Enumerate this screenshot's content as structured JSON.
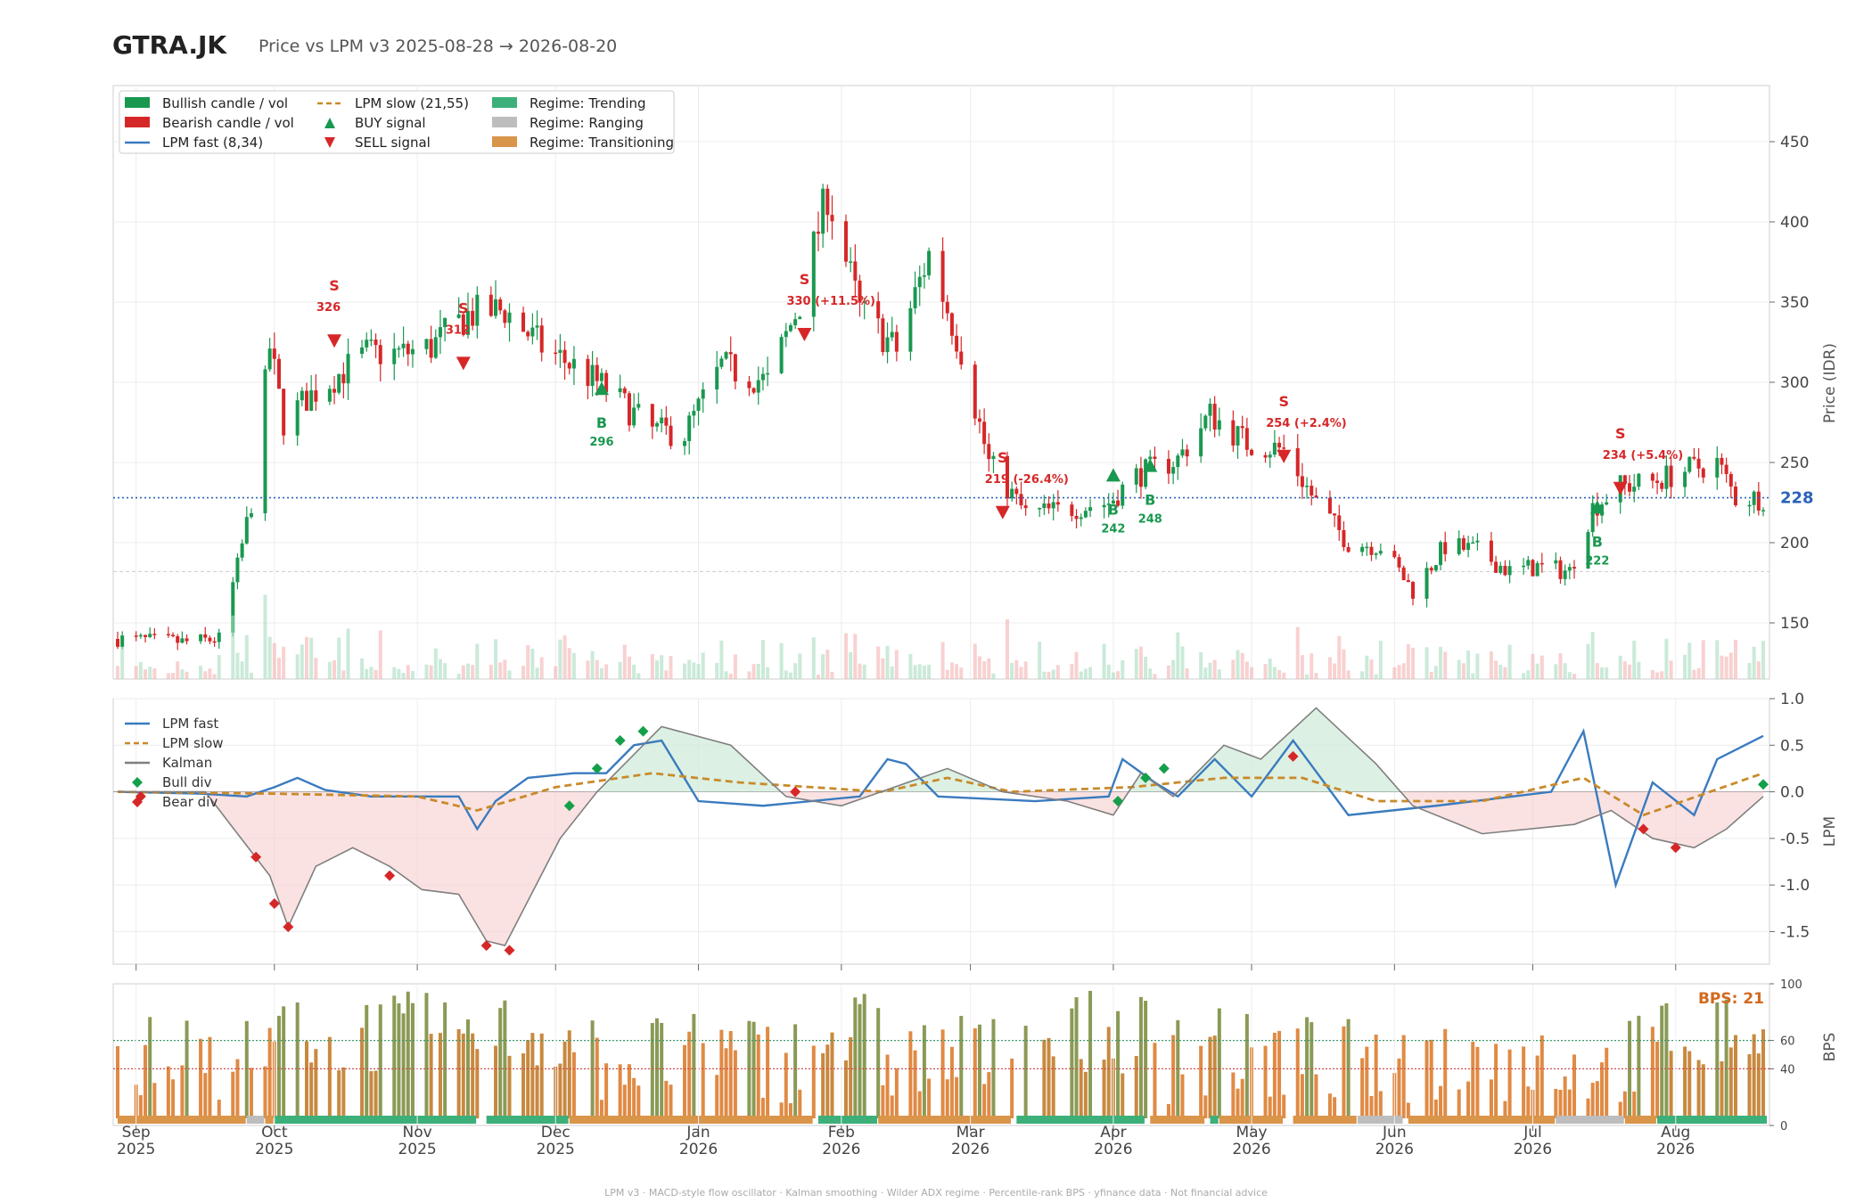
{
  "header": {
    "ticker": "GTRA.JK",
    "subtitle": "Price vs LPM v3  2025-08-28 → 2026-08-20"
  },
  "footer": {
    "text": "LPM v3  ·  MACD-style flow oscillator  ·  Kalman smoothing  ·  Wilder ADX regime  ·  Percentile-rank BPS  ·  yfinance data  ·  Not financial advice"
  },
  "colors": {
    "bull": "#1a9850",
    "bear": "#d62728",
    "lpm_fast": "#3a7bbf",
    "lpm_slow": "#c98a2b",
    "kalman": "#7f7f7f",
    "trending": "#3db07a",
    "ranging": "#bdbdbd",
    "transitioning": "#d9954a",
    "last_price": "#2a63b8",
    "bps_label": "#d2691e"
  },
  "chart_data": [
    {
      "id": "price",
      "type": "candlestick",
      "ylabel": "Price (IDR)",
      "ylim": [
        115,
        485
      ],
      "yticks": [
        150,
        200,
        250,
        300,
        350,
        400,
        450
      ],
      "x_range": [
        "2025-08-28",
        "2026-08-20"
      ],
      "last_price": 228,
      "last_price_label": "228",
      "legend": {
        "placement": "top-left",
        "entries": [
          "Bullish candle / vol",
          "Bearish candle / vol",
          "LPM fast (8,34)",
          "LPM slow (21,55)",
          "BUY signal",
          "SELL signal",
          "Regime: Trending",
          "Regime: Ranging",
          "Regime: Transitioning"
        ]
      },
      "anchors": [
        [
          "2025-08-28",
          140
        ],
        [
          "2025-09-12",
          138
        ],
        [
          "2025-09-19",
          140
        ],
        [
          "2025-09-23",
          185
        ],
        [
          "2025-09-26",
          225
        ],
        [
          "2025-09-30",
          322
        ],
        [
          "2025-10-03",
          275
        ],
        [
          "2025-10-08",
          290
        ],
        [
          "2025-10-14",
          303
        ],
        [
          "2025-10-21",
          318
        ],
        [
          "2025-10-29",
          318
        ],
        [
          "2025-11-04",
          322
        ],
        [
          "2025-11-12",
          342
        ],
        [
          "2025-11-20",
          345
        ],
        [
          "2025-11-28",
          322
        ],
        [
          "2025-12-05",
          310
        ],
        [
          "2025-12-12",
          296
        ],
        [
          "2025-12-22",
          270
        ],
        [
          "2025-12-29",
          268
        ],
        [
          "2026-01-06",
          310
        ],
        [
          "2026-01-16",
          300
        ],
        [
          "2026-01-23",
          350
        ],
        [
          "2026-01-29",
          418
        ],
        [
          "2026-02-05",
          345
        ],
        [
          "2026-02-13",
          320
        ],
        [
          "2026-02-20",
          380
        ],
        [
          "2026-02-27",
          320
        ],
        [
          "2026-03-05",
          250
        ],
        [
          "2026-03-13",
          218
        ],
        [
          "2026-03-20",
          220
        ],
        [
          "2026-03-31",
          225
        ],
        [
          "2026-04-06",
          242
        ],
        [
          "2026-04-15",
          252
        ],
        [
          "2026-04-22",
          280
        ],
        [
          "2026-04-30",
          262
        ],
        [
          "2026-05-08",
          258
        ],
        [
          "2026-05-15",
          225
        ],
        [
          "2026-05-22",
          200
        ],
        [
          "2026-05-29",
          198
        ],
        [
          "2026-06-05",
          170
        ],
        [
          "2026-06-12",
          198
        ],
        [
          "2026-06-19",
          195
        ],
        [
          "2026-06-26",
          182
        ],
        [
          "2026-07-02",
          185
        ],
        [
          "2026-07-09",
          182
        ],
        [
          "2026-07-14",
          222
        ],
        [
          "2026-07-20",
          235
        ],
        [
          "2026-07-27",
          238
        ],
        [
          "2026-08-03",
          245
        ],
        [
          "2026-08-10",
          250
        ],
        [
          "2026-08-14",
          228
        ],
        [
          "2026-08-20",
          228
        ]
      ],
      "signals": [
        {
          "type": "SELL",
          "date": "2025-10-14",
          "price": 326,
          "letter": "S",
          "label": "326"
        },
        {
          "type": "SELL",
          "date": "2025-11-11",
          "price": 312,
          "letter": "S",
          "label": "312"
        },
        {
          "type": "BUY",
          "date": "2025-12-11",
          "price": 296,
          "letter": "B",
          "label": "296"
        },
        {
          "type": "SELL",
          "date": "2026-01-24",
          "price": 330,
          "letter": "S",
          "label": "330 (+11.5%)"
        },
        {
          "type": "SELL",
          "date": "2026-03-08",
          "price": 219,
          "letter": "S",
          "label": "219 (-26.4%)"
        },
        {
          "type": "BUY",
          "date": "2026-04-01",
          "price": 242,
          "letter": "B",
          "label": "242"
        },
        {
          "type": "BUY",
          "date": "2026-04-09",
          "price": 248,
          "letter": "B",
          "label": "248"
        },
        {
          "type": "SELL",
          "date": "2026-05-08",
          "price": 254,
          "letter": "S",
          "label": "254 (+2.4%)"
        },
        {
          "type": "BUY",
          "date": "2026-07-15",
          "price": 222,
          "letter": "B",
          "label": "222"
        },
        {
          "type": "SELL",
          "date": "2026-07-20",
          "price": 234,
          "letter": "S",
          "label": "234 (+5.4%)"
        }
      ]
    },
    {
      "id": "lpm",
      "type": "line",
      "ylabel": "LPM",
      "ylim": [
        -1.85,
        1.0
      ],
      "yticks": [
        "-1.5",
        "-1.0",
        "-0.5",
        "0.0",
        "0.5",
        "1.0"
      ],
      "legend": {
        "placement": "top-left",
        "entries": [
          "LPM fast",
          "LPM slow",
          "Kalman",
          "Bull div",
          "Bear div"
        ]
      },
      "series": [
        {
          "name": "LPM fast",
          "points": [
            [
              "2025-08-28",
              0.0
            ],
            [
              "2025-09-15",
              -0.02
            ],
            [
              "2025-09-25",
              -0.05
            ],
            [
              "2025-10-01",
              0.05
            ],
            [
              "2025-10-06",
              0.15
            ],
            [
              "2025-10-12",
              0.02
            ],
            [
              "2025-10-22",
              -0.05
            ],
            [
              "2025-11-10",
              -0.05
            ],
            [
              "2025-11-14",
              -0.4
            ],
            [
              "2025-11-18",
              -0.1
            ],
            [
              "2025-11-25",
              0.15
            ],
            [
              "2025-12-05",
              0.2
            ],
            [
              "2025-12-12",
              0.2
            ],
            [
              "2025-12-18",
              0.5
            ],
            [
              "2025-12-24",
              0.55
            ],
            [
              "2026-01-01",
              -0.1
            ],
            [
              "2026-01-15",
              -0.15
            ],
            [
              "2026-02-05",
              -0.05
            ],
            [
              "2026-02-11",
              0.35
            ],
            [
              "2026-02-15",
              0.3
            ],
            [
              "2026-02-22",
              -0.05
            ],
            [
              "2026-03-15",
              -0.1
            ],
            [
              "2026-03-31",
              -0.05
            ],
            [
              "2026-04-03",
              0.35
            ],
            [
              "2026-04-10",
              0.1
            ],
            [
              "2026-04-15",
              -0.05
            ],
            [
              "2026-04-23",
              0.35
            ],
            [
              "2026-05-01",
              -0.05
            ],
            [
              "2026-05-10",
              0.55
            ],
            [
              "2026-05-22",
              -0.25
            ],
            [
              "2026-06-10",
              -0.15
            ],
            [
              "2026-07-05",
              0.0
            ],
            [
              "2026-07-12",
              0.65
            ],
            [
              "2026-07-19",
              -1.0
            ],
            [
              "2026-07-27",
              0.1
            ],
            [
              "2026-08-05",
              -0.25
            ],
            [
              "2026-08-10",
              0.35
            ],
            [
              "2026-08-20",
              0.6
            ]
          ]
        },
        {
          "name": "LPM slow",
          "points": [
            [
              "2025-08-28",
              0.0
            ],
            [
              "2025-10-01",
              -0.02
            ],
            [
              "2025-11-01",
              -0.05
            ],
            [
              "2025-11-14",
              -0.2
            ],
            [
              "2025-12-01",
              0.05
            ],
            [
              "2025-12-22",
              0.2
            ],
            [
              "2026-01-10",
              0.1
            ],
            [
              "2026-02-10",
              0.0
            ],
            [
              "2026-02-24",
              0.15
            ],
            [
              "2026-03-10",
              0.0
            ],
            [
              "2026-04-05",
              0.05
            ],
            [
              "2026-04-25",
              0.15
            ],
            [
              "2026-05-12",
              0.15
            ],
            [
              "2026-05-28",
              -0.1
            ],
            [
              "2026-06-20",
              -0.1
            ],
            [
              "2026-07-12",
              0.15
            ],
            [
              "2026-07-25",
              -0.25
            ],
            [
              "2026-08-20",
              0.2
            ]
          ]
        },
        {
          "name": "Kalman",
          "points": [
            [
              "2025-08-28",
              0.0
            ],
            [
              "2025-09-16",
              0.0
            ],
            [
              "2025-09-30",
              -0.9
            ],
            [
              "2025-10-04",
              -1.45
            ],
            [
              "2025-10-10",
              -0.8
            ],
            [
              "2025-10-18",
              -0.6
            ],
            [
              "2025-10-26",
              -0.8
            ],
            [
              "2025-11-02",
              -1.05
            ],
            [
              "2025-11-10",
              -1.1
            ],
            [
              "2025-11-16",
              -1.6
            ],
            [
              "2025-11-20",
              -1.65
            ],
            [
              "2025-12-02",
              -0.5
            ],
            [
              "2025-12-10",
              0.0
            ],
            [
              "2025-12-24",
              0.7
            ],
            [
              "2026-01-08",
              0.5
            ],
            [
              "2026-01-20",
              -0.05
            ],
            [
              "2026-02-01",
              -0.15
            ],
            [
              "2026-02-24",
              0.25
            ],
            [
              "2026-03-08",
              0.0
            ],
            [
              "2026-03-22",
              -0.1
            ],
            [
              "2026-04-01",
              -0.25
            ],
            [
              "2026-04-07",
              0.2
            ],
            [
              "2026-04-14",
              -0.05
            ],
            [
              "2026-04-25",
              0.5
            ],
            [
              "2026-05-03",
              0.35
            ],
            [
              "2026-05-15",
              0.9
            ],
            [
              "2026-05-28",
              0.3
            ],
            [
              "2026-06-05",
              -0.15
            ],
            [
              "2026-06-20",
              -0.45
            ],
            [
              "2026-07-10",
              -0.35
            ],
            [
              "2026-07-18",
              -0.2
            ],
            [
              "2026-07-27",
              -0.5
            ],
            [
              "2026-08-05",
              -0.6
            ],
            [
              "2026-08-12",
              -0.4
            ],
            [
              "2026-08-20",
              -0.05
            ]
          ]
        }
      ],
      "divergences": {
        "bull": [
          [
            "2025-12-04",
            -0.15
          ],
          [
            "2025-12-10",
            0.25
          ],
          [
            "2025-12-15",
            0.55
          ],
          [
            "2025-12-20",
            0.65
          ],
          [
            "2026-04-02",
            -0.1
          ],
          [
            "2026-04-08",
            0.15
          ],
          [
            "2026-04-12",
            0.25
          ],
          [
            "2026-08-20",
            0.08
          ]
        ],
        "bear": [
          [
            "2025-09-02",
            -0.05
          ],
          [
            "2025-09-27",
            -0.7
          ],
          [
            "2025-10-01",
            -1.2
          ],
          [
            "2025-10-04",
            -1.45
          ],
          [
            "2025-10-26",
            -0.9
          ],
          [
            "2025-11-16",
            -1.65
          ],
          [
            "2025-11-21",
            -1.7
          ],
          [
            "2026-01-22",
            0.0
          ],
          [
            "2026-05-10",
            0.38
          ],
          [
            "2026-07-25",
            -0.4
          ],
          [
            "2026-08-01",
            -0.6
          ]
        ]
      }
    },
    {
      "id": "bps",
      "type": "bar",
      "ylabel": "BPS",
      "ylim": [
        0,
        100
      ],
      "yticks": [
        "0",
        "40",
        "60",
        "100"
      ],
      "thresholds": [
        40,
        60
      ],
      "current_label": "BPS: 21",
      "current": 21,
      "regime_bands": [
        {
          "regime": "Transitioning",
          "start": "2025-08-28",
          "end": "2025-09-24"
        },
        {
          "regime": "Ranging",
          "start": "2025-09-25",
          "end": "2025-09-28"
        },
        {
          "regime": "Transitioning",
          "start": "2025-09-29",
          "end": "2025-09-30"
        },
        {
          "regime": "Trending",
          "start": "2025-10-01",
          "end": "2025-11-13"
        },
        {
          "regime": "Trending",
          "start": "2025-11-16",
          "end": "2025-12-03"
        },
        {
          "regime": "Transitioning",
          "start": "2025-12-04",
          "end": "2026-01-25"
        },
        {
          "regime": "Trending",
          "start": "2026-01-27",
          "end": "2026-02-08"
        },
        {
          "regime": "Transitioning",
          "start": "2026-02-09",
          "end": "2026-03-09"
        },
        {
          "regime": "Trending",
          "start": "2026-03-11",
          "end": "2026-04-07"
        },
        {
          "regime": "Transitioning",
          "start": "2026-04-09",
          "end": "2026-04-20"
        },
        {
          "regime": "Trending",
          "start": "2026-04-22",
          "end": "2026-04-23"
        },
        {
          "regime": "Transitioning",
          "start": "2026-04-24",
          "end": "2026-05-07"
        },
        {
          "regime": "Transitioning",
          "start": "2026-05-10",
          "end": "2026-05-23"
        },
        {
          "regime": "Ranging",
          "start": "2026-05-24",
          "end": "2026-06-02"
        },
        {
          "regime": "Transitioning",
          "start": "2026-06-04",
          "end": "2026-07-05"
        },
        {
          "regime": "Ranging",
          "start": "2026-07-06",
          "end": "2026-07-20"
        },
        {
          "regime": "Transitioning",
          "start": "2026-07-21",
          "end": "2026-07-27"
        },
        {
          "regime": "Trending",
          "start": "2026-07-28",
          "end": "2026-08-20"
        }
      ]
    }
  ],
  "x_axis": {
    "ticks": [
      {
        "date": "2025-09-01",
        "month": "Sep",
        "year": "2025"
      },
      {
        "date": "2025-10-01",
        "month": "Oct",
        "year": "2025"
      },
      {
        "date": "2025-11-01",
        "month": "Nov",
        "year": "2025"
      },
      {
        "date": "2025-12-01",
        "month": "Dec",
        "year": "2025"
      },
      {
        "date": "2026-01-01",
        "month": "Jan",
        "year": "2026"
      },
      {
        "date": "2026-02-01",
        "month": "Feb",
        "year": "2026"
      },
      {
        "date": "2026-03-01",
        "month": "Mar",
        "year": "2026"
      },
      {
        "date": "2026-04-01",
        "month": "Apr",
        "year": "2026"
      },
      {
        "date": "2026-05-01",
        "month": "May",
        "year": "2026"
      },
      {
        "date": "2026-06-01",
        "month": "Jun",
        "year": "2026"
      },
      {
        "date": "2026-07-01",
        "month": "Jul",
        "year": "2026"
      },
      {
        "date": "2026-08-01",
        "month": "Aug",
        "year": "2026"
      }
    ]
  }
}
